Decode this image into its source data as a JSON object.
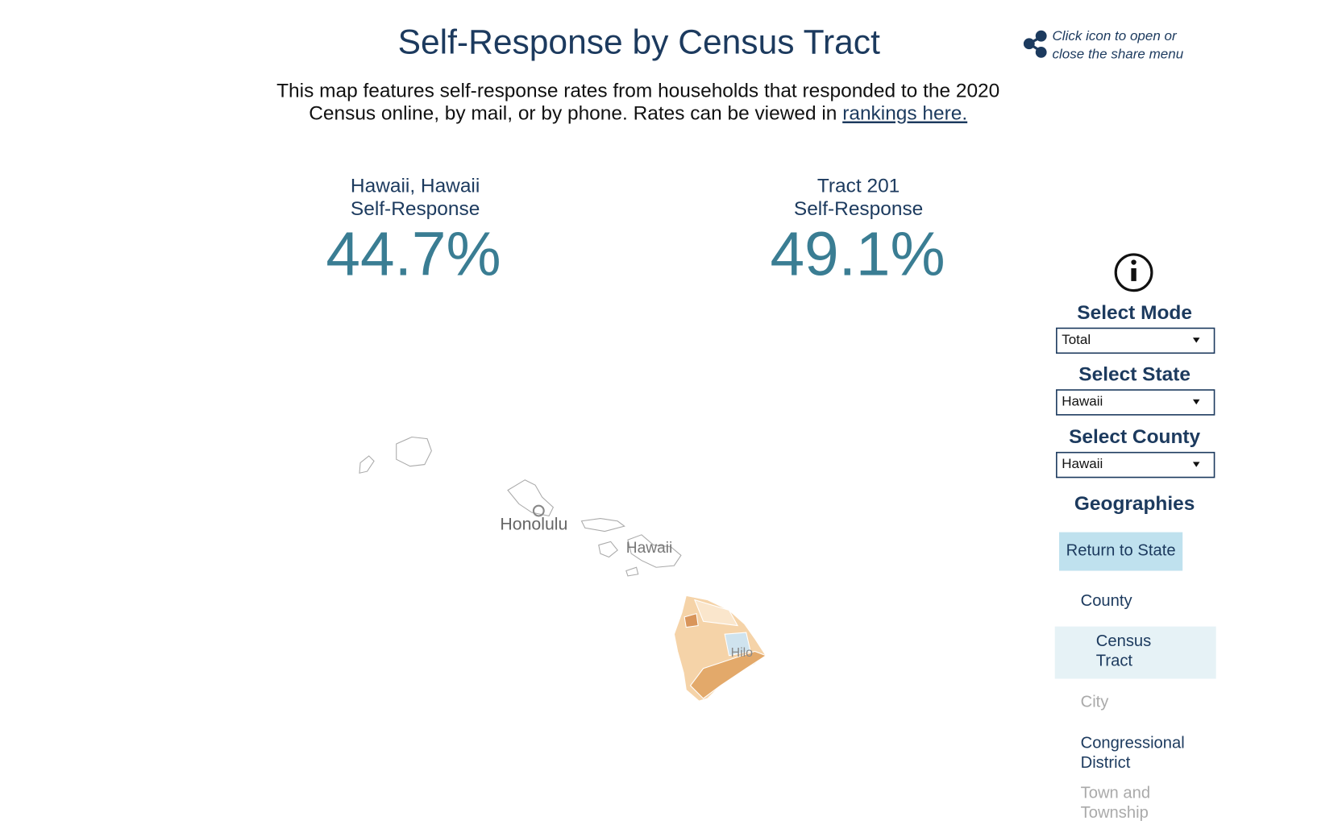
{
  "header": {
    "title": "Self-Response by Census Tract",
    "share_hint": [
      "Click icon to open or",
      "close the share menu"
    ]
  },
  "intro": {
    "lines": [
      "This map features self-response rates from households that responded to the 2020",
      "Census online, by mail, or by phone. Rates can be viewed in "
    ],
    "link": "rankings here."
  },
  "stats": [
    {
      "label": [
        "Hawaii, Hawaii",
        "Self-Response"
      ],
      "value": "44.7%"
    },
    {
      "label": [
        "Tract 201",
        "Self-Response"
      ],
      "value": "49.1%"
    }
  ],
  "map": {
    "labels": [
      "Honolulu",
      "Hawaii",
      "Hilo"
    ]
  },
  "sidebar": {
    "selects": [
      {
        "label": "Select Mode",
        "value": "Total"
      },
      {
        "label": "Select State",
        "value": "Hawaii"
      },
      {
        "label": "Select County",
        "value": "Hawaii"
      }
    ],
    "geographies_title": "Geographies",
    "return_button": "Return to State",
    "items": [
      {
        "text": [
          "County"
        ]
      },
      {
        "text": [
          "Census",
          "Tract"
        ]
      },
      {
        "text": [
          "City"
        ]
      },
      {
        "text": [
          "Congressional",
          "District"
        ]
      },
      {
        "text": [
          "Town and",
          "Township"
        ]
      }
    ]
  }
}
